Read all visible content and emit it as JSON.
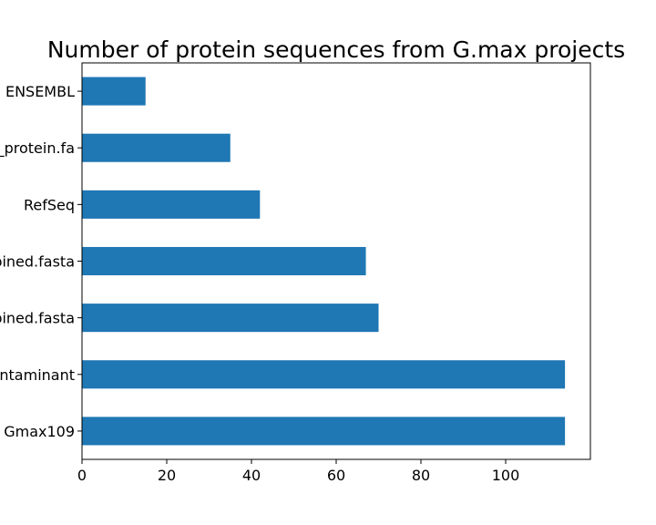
{
  "chart_data": {
    "type": "bar",
    "orientation": "horizontal",
    "title": "Number of protein sequences from G.max projects",
    "xlabel": "",
    "ylabel": "",
    "categories": [
      "ENSEMBL",
      "_protein.fa",
      "RefSeq",
      "bined.fasta",
      "bined.fasta",
      "ntaminant",
      "Gmax109"
    ],
    "values": [
      15,
      35,
      42,
      67,
      70,
      114,
      114
    ],
    "xlim": [
      0,
      120
    ],
    "xticks": [
      0,
      20,
      40,
      60,
      80,
      100
    ],
    "grid": false,
    "legend": "none",
    "colors": {
      "bar": "#1f77b4",
      "axis": "#000000",
      "background": "#ffffff"
    }
  }
}
